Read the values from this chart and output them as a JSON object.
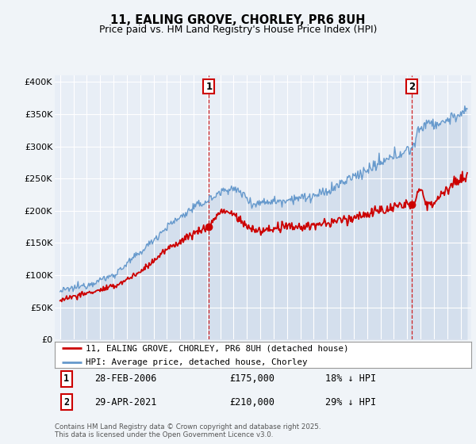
{
  "title": "11, EALING GROVE, CHORLEY, PR6 8UH",
  "subtitle": "Price paid vs. HM Land Registry's House Price Index (HPI)",
  "background_color": "#f0f4f8",
  "plot_bg_color": "#e8eef6",
  "ylim": [
    0,
    410000
  ],
  "yticks": [
    0,
    50000,
    100000,
    150000,
    200000,
    250000,
    300000,
    350000,
    400000
  ],
  "ytick_labels": [
    "£0",
    "£50K",
    "£100K",
    "£150K",
    "£200K",
    "£250K",
    "£300K",
    "£350K",
    "£400K"
  ],
  "sale1": {
    "date": 2006.15,
    "price": 175000,
    "label": "1",
    "label_date": "28-FEB-2006",
    "price_str": "£175,000",
    "pct": "18% ↓ HPI"
  },
  "sale2": {
    "date": 2021.33,
    "price": 210000,
    "label": "2",
    "label_date": "29-APR-2021",
    "price_str": "£210,000",
    "pct": "29% ↓ HPI"
  },
  "legend_line1": "11, EALING GROVE, CHORLEY, PR6 8UH (detached house)",
  "legend_line2": "HPI: Average price, detached house, Chorley",
  "footer": "Contains HM Land Registry data © Crown copyright and database right 2025.\nThis data is licensed under the Open Government Licence v3.0.",
  "red_color": "#cc0000",
  "blue_color": "#6699cc",
  "blue_fill": "#ccd9ea"
}
